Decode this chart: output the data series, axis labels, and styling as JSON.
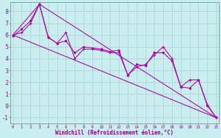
{
  "bg_color": "#c8eef0",
  "line_color": "#aa00aa",
  "grid_color": "#b0c8cc",
  "xlabel": "Windchill (Refroidissement éolien,°C)",
  "xlabel_color": "#880088",
  "tick_color": "#880088",
  "ylabel_ticks": [
    -1,
    0,
    1,
    2,
    3,
    4,
    5,
    6,
    7,
    8
  ],
  "xlabel_ticks": [
    0,
    1,
    2,
    3,
    4,
    5,
    6,
    7,
    8,
    9,
    10,
    11,
    12,
    13,
    14,
    15,
    16,
    17,
    18,
    19,
    20,
    21,
    22,
    23
  ],
  "xlim": [
    -0.3,
    23.3
  ],
  "ylim": [
    -1.5,
    8.8
  ],
  "series": [
    {
      "x": [
        0,
        1,
        2,
        3,
        4,
        5,
        6,
        7,
        8,
        9,
        10,
        11,
        12,
        13,
        14,
        15,
        16,
        17,
        18,
        19,
        20,
        21,
        22,
        23
      ],
      "y": [
        6.0,
        6.2,
        7.0,
        8.6,
        5.8,
        5.3,
        6.2,
        4.0,
        4.8,
        4.8,
        4.7,
        4.5,
        4.5,
        2.6,
        3.3,
        3.5,
        4.3,
        5.0,
        4.0,
        1.6,
        2.2,
        2.2,
        0.1,
        -1.0
      ]
    },
    {
      "x": [
        0,
        1,
        2,
        3,
        4,
        5,
        6,
        7,
        8,
        9,
        10,
        11,
        12,
        13,
        14,
        15,
        16,
        17,
        18,
        19,
        20,
        21,
        22,
        23
      ],
      "y": [
        5.9,
        6.5,
        7.2,
        8.6,
        5.8,
        5.3,
        5.5,
        4.5,
        5.0,
        4.9,
        4.8,
        4.6,
        4.7,
        2.6,
        3.5,
        3.4,
        4.5,
        4.5,
        3.8,
        1.6,
        1.5,
        2.2,
        0.0,
        -1.0
      ]
    },
    {
      "x": [
        0,
        3,
        23
      ],
      "y": [
        6.0,
        8.6,
        -1.0
      ]
    },
    {
      "x": [
        0,
        23
      ],
      "y": [
        6.0,
        -1.0
      ]
    }
  ]
}
